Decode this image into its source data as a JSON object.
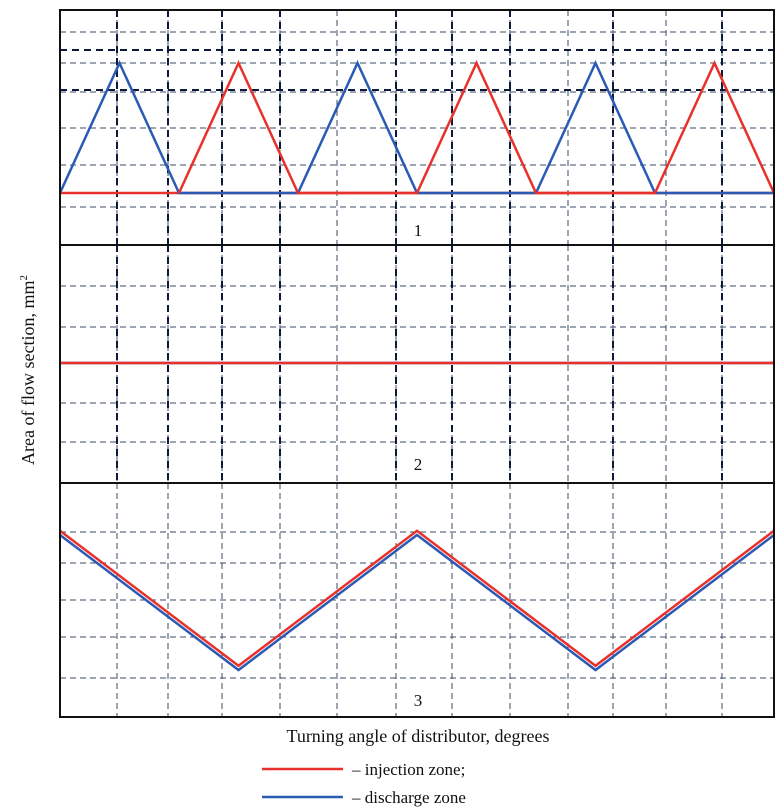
{
  "colors": {
    "injection": "#e8312a",
    "discharge": "#2b5ab5"
  },
  "chart_data": {
    "type": "line",
    "xlabel": "Turning angle of distributor, degrees",
    "ylabel": "Area of flow section, mm",
    "ylabel_sup": "2",
    "xlim": [
      0,
      12
    ],
    "ylim": [
      0,
      10
    ],
    "legend": [
      {
        "name": "– injection zone;",
        "color": "#e8312a"
      },
      {
        "name": "– discharge zone",
        "color": "#2b5ab5"
      }
    ],
    "panels": [
      {
        "label": "1",
        "series": [
          {
            "name": "injection",
            "x": [
              0,
              2,
              4,
              6,
              8,
              10,
              12
            ],
            "y": [
              0,
              0,
              0,
              0,
              0,
              0,
              0
            ]
          },
          {
            "name": "discharge",
            "x": [
              0,
              1,
              2,
              4,
              5,
              6,
              8,
              9,
              10,
              12
            ],
            "y": [
              0,
              7,
              0,
              0,
              7,
              0,
              0,
              7,
              0,
              0
            ]
          },
          {
            "name": "injection",
            "x": [
              2,
              3,
              4,
              6,
              7,
              8,
              10,
              11,
              12
            ],
            "y": [
              0,
              7,
              0,
              0,
              7,
              0,
              0,
              7,
              0
            ]
          }
        ]
      },
      {
        "label": "2",
        "series": [
          {
            "name": "discharge",
            "x": [
              0,
              12
            ],
            "y": [
              5,
              5
            ]
          },
          {
            "name": "injection",
            "x": [
              0,
              12
            ],
            "y": [
              5,
              5
            ]
          }
        ]
      },
      {
        "label": "3",
        "series": [
          {
            "name": "discharge",
            "x": [
              0,
              3,
              6,
              9,
              12
            ],
            "y": [
              7.2,
              0.8,
              7.2,
              0.8,
              7.2
            ]
          },
          {
            "name": "injection",
            "x": [
              0,
              3,
              6,
              9,
              12
            ],
            "y": [
              7.4,
              1.0,
              7.4,
              1.0,
              7.4
            ]
          }
        ]
      }
    ]
  }
}
